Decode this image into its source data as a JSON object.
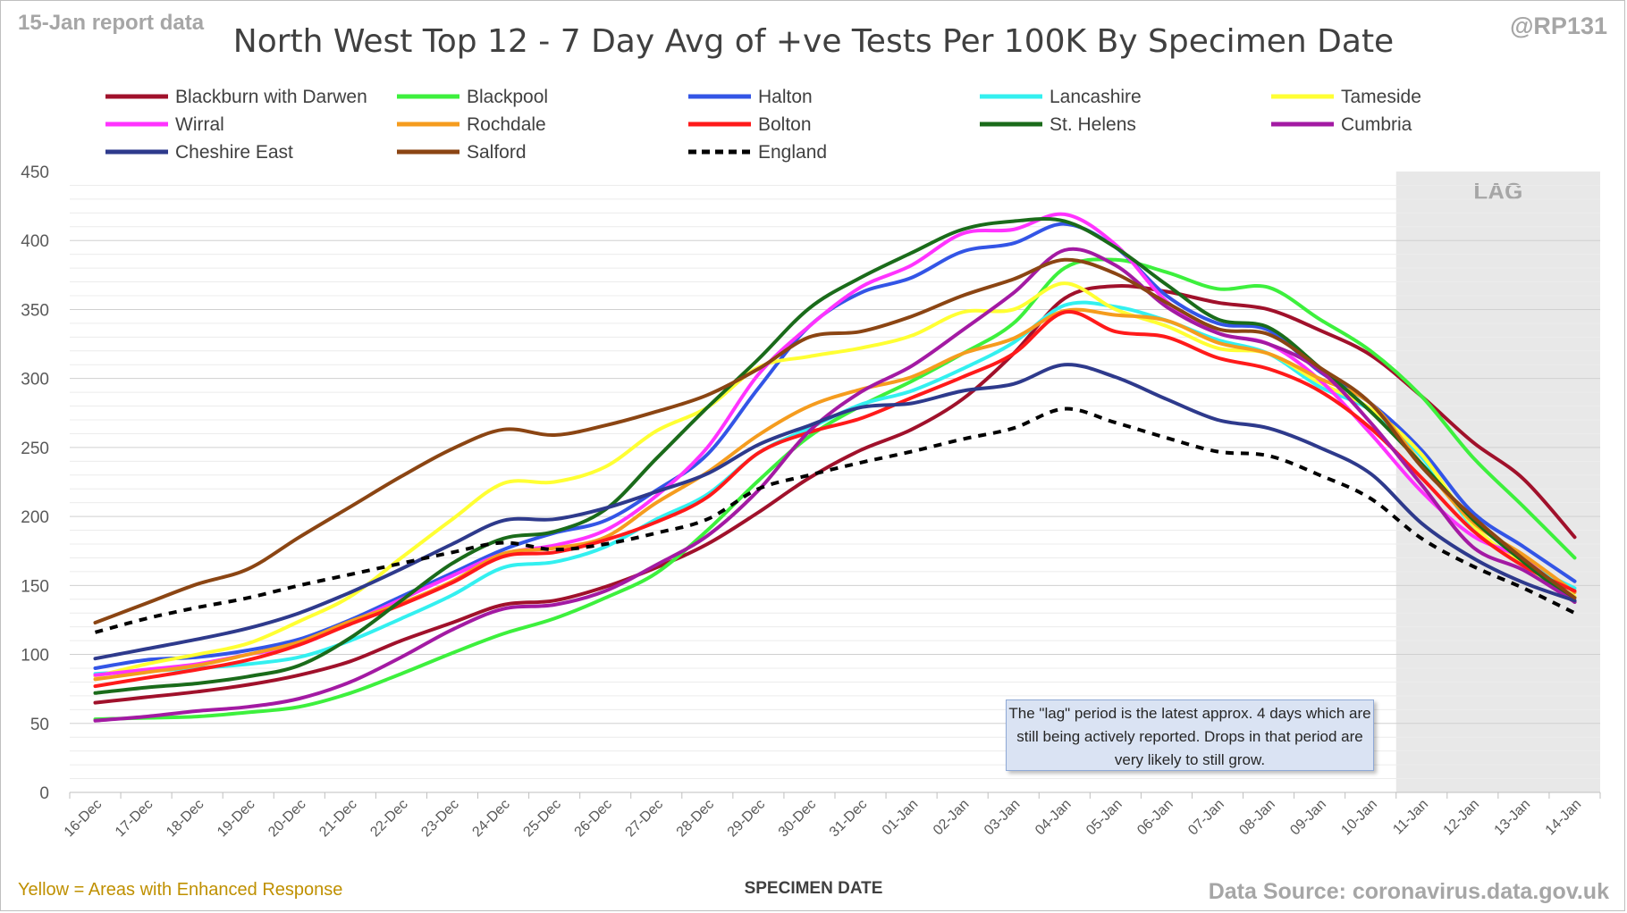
{
  "header": {
    "report_label": "15-Jan report data",
    "handle": "@RP131",
    "title": "North West Top 12 - 7 Day Avg of +ve Tests Per 100K By Specimen Date"
  },
  "footer": {
    "note": "Yellow = Areas with Enhanced Response",
    "source": "Data Source: coronavirus.data.gov.uk"
  },
  "annotation": "The \"lag\" period is the latest approx. 4 days which are still being actively reported.  Drops in that period are very likely to still grow.",
  "chart_data": {
    "type": "line",
    "title": "North West Top 12 - 7 Day Avg of +ve Tests Per 100K By Specimen Date",
    "xlabel": "SPECIMEN DATE",
    "ylabel": "",
    "ylim": [
      0,
      450
    ],
    "yticks": [
      0,
      50,
      100,
      150,
      200,
      250,
      300,
      350,
      400,
      450
    ],
    "grid": "horizontal",
    "legend": "top",
    "shaded_region": {
      "label": "LAG",
      "from": "11-Jan",
      "to": "14-Jan",
      "color": "#e8e8e8"
    },
    "categories": [
      "16-Dec",
      "17-Dec",
      "18-Dec",
      "19-Dec",
      "20-Dec",
      "21-Dec",
      "22-Dec",
      "23-Dec",
      "24-Dec",
      "25-Dec",
      "26-Dec",
      "27-Dec",
      "28-Dec",
      "29-Dec",
      "30-Dec",
      "31-Dec",
      "01-Jan",
      "02-Jan",
      "03-Jan",
      "04-Jan",
      "05-Jan",
      "06-Jan",
      "07-Jan",
      "08-Jan",
      "09-Jan",
      "10-Jan",
      "11-Jan",
      "12-Jan",
      "13-Jan",
      "14-Jan"
    ],
    "series": [
      {
        "name": "Blackburn with Darwen",
        "color": "#a0112b",
        "dash": false,
        "values": [
          65,
          69,
          73,
          78,
          85,
          95,
          110,
          123,
          136,
          139,
          149,
          163,
          180,
          203,
          228,
          248,
          263,
          285,
          318,
          358,
          367,
          363,
          355,
          350,
          335,
          317,
          287,
          254,
          227,
          185
        ]
      },
      {
        "name": "Blackpool",
        "color": "#3df03d",
        "dash": false,
        "values": [
          53,
          54,
          55,
          58,
          62,
          72,
          86,
          101,
          115,
          126,
          141,
          159,
          190,
          226,
          258,
          280,
          298,
          318,
          340,
          380,
          386,
          377,
          365,
          366,
          343,
          320,
          287,
          243,
          207,
          170
        ]
      },
      {
        "name": "Halton",
        "color": "#3355e6",
        "dash": false,
        "values": [
          90,
          96,
          98,
          103,
          111,
          125,
          142,
          159,
          176,
          188,
          197,
          219,
          245,
          293,
          338,
          362,
          373,
          392,
          398,
          412,
          395,
          360,
          340,
          335,
          305,
          282,
          248,
          203,
          178,
          153
        ]
      },
      {
        "name": "Lancashire",
        "color": "#33f0f0",
        "dash": false,
        "values": [
          86,
          88,
          90,
          93,
          98,
          110,
          126,
          143,
          163,
          167,
          178,
          198,
          216,
          246,
          264,
          281,
          291,
          307,
          326,
          353,
          352,
          342,
          328,
          318,
          294,
          277,
          243,
          193,
          167,
          148
        ]
      },
      {
        "name": "Tameside",
        "color": "#ffff33",
        "dash": false,
        "values": [
          84,
          93,
          100,
          108,
          124,
          142,
          170,
          198,
          224,
          225,
          236,
          262,
          279,
          308,
          316,
          322,
          331,
          348,
          350,
          369,
          350,
          338,
          322,
          318,
          297,
          278,
          245,
          194,
          165,
          142
        ]
      },
      {
        "name": "Wirral",
        "color": "#ff33ff",
        "dash": false,
        "values": [
          85,
          89,
          93,
          100,
          107,
          123,
          140,
          157,
          173,
          179,
          190,
          215,
          250,
          303,
          338,
          366,
          382,
          405,
          408,
          419,
          397,
          356,
          333,
          325,
          299,
          260,
          218,
          186,
          169,
          138
        ]
      },
      {
        "name": "Rochdale",
        "color": "#f59c1e",
        "dash": false,
        "values": [
          82,
          87,
          92,
          100,
          109,
          124,
          137,
          153,
          173,
          177,
          185,
          210,
          232,
          259,
          280,
          292,
          301,
          318,
          329,
          349,
          346,
          342,
          326,
          318,
          300,
          282,
          238,
          196,
          172,
          145
        ]
      },
      {
        "name": "Bolton",
        "color": "#ff1a1a",
        "dash": false,
        "values": [
          77,
          83,
          89,
          96,
          107,
          122,
          136,
          152,
          171,
          174,
          183,
          196,
          214,
          246,
          261,
          271,
          286,
          301,
          318,
          348,
          334,
          330,
          315,
          307,
          291,
          264,
          228,
          190,
          164,
          146
        ]
      },
      {
        "name": "St. Helens",
        "color": "#1a6b1a",
        "dash": false,
        "values": [
          72,
          76,
          79,
          84,
          92,
          112,
          139,
          166,
          184,
          189,
          205,
          242,
          279,
          314,
          351,
          373,
          391,
          408,
          414,
          414,
          395,
          368,
          343,
          337,
          308,
          276,
          238,
          198,
          167,
          138
        ]
      },
      {
        "name": "Cumbria",
        "color": "#a31aa3",
        "dash": false,
        "values": [
          52,
          55,
          59,
          62,
          68,
          80,
          98,
          118,
          133,
          136,
          146,
          165,
          186,
          219,
          262,
          290,
          309,
          335,
          362,
          393,
          382,
          352,
          333,
          325,
          306,
          268,
          223,
          178,
          161,
          138
        ]
      },
      {
        "name": "Cheshire East",
        "color": "#2e3a8c",
        "dash": false,
        "values": [
          97,
          104,
          111,
          119,
          130,
          145,
          162,
          180,
          197,
          198,
          206,
          218,
          231,
          252,
          266,
          279,
          282,
          291,
          296,
          310,
          301,
          285,
          270,
          264,
          250,
          231,
          195,
          170,
          152,
          139
        ]
      },
      {
        "name": "Salford",
        "color": "#8b4513",
        "dash": false,
        "values": [
          123,
          137,
          151,
          162,
          185,
          207,
          229,
          249,
          263,
          259,
          266,
          276,
          288,
          307,
          330,
          334,
          345,
          360,
          372,
          386,
          376,
          355,
          336,
          332,
          308,
          282,
          236,
          200,
          169,
          141
        ]
      },
      {
        "name": "England",
        "color": "#000000",
        "dash": true,
        "values": [
          116,
          126,
          134,
          141,
          150,
          158,
          166,
          174,
          181,
          176,
          180,
          188,
          198,
          220,
          230,
          239,
          247,
          256,
          264,
          278,
          268,
          257,
          247,
          244,
          230,
          213,
          184,
          164,
          148,
          130
        ]
      }
    ]
  }
}
